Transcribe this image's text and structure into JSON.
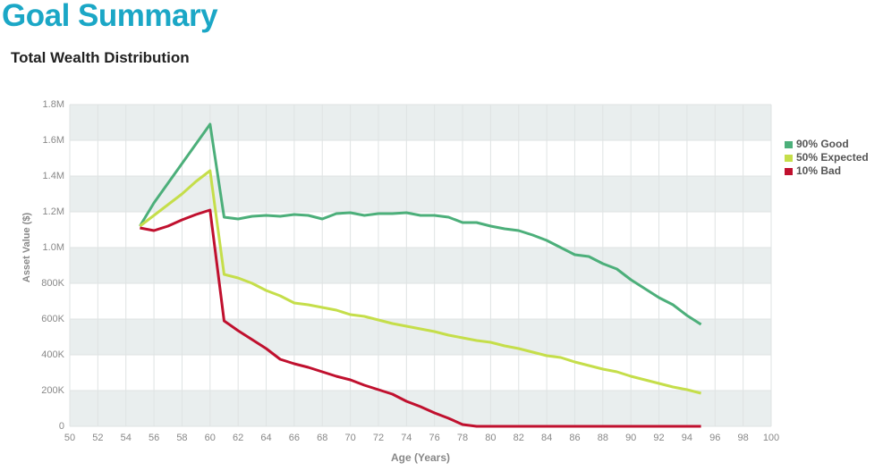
{
  "chart_data": {
    "type": "line",
    "title": "Goal Summary",
    "subtitle": "Total Wealth Distribution",
    "x_label": "Age (Years)",
    "y_label": "Asset Value ($)",
    "x": [
      55,
      56,
      57,
      58,
      59,
      60,
      61,
      62,
      63,
      64,
      65,
      66,
      67,
      68,
      69,
      70,
      71,
      72,
      73,
      74,
      75,
      76,
      77,
      78,
      79,
      80,
      81,
      82,
      83,
      84,
      85,
      86,
      87,
      88,
      89,
      90,
      91,
      92,
      93,
      94,
      95
    ],
    "series": [
      {
        "name": "90% Good",
        "color": "#4caf7a",
        "values": [
          1120000,
          1250000,
          1360000,
          1470000,
          1580000,
          1690000,
          1170000,
          1160000,
          1175000,
          1180000,
          1175000,
          1185000,
          1180000,
          1160000,
          1190000,
          1195000,
          1180000,
          1190000,
          1190000,
          1195000,
          1180000,
          1180000,
          1170000,
          1140000,
          1140000,
          1120000,
          1105000,
          1095000,
          1070000,
          1040000,
          1000000,
          960000,
          950000,
          910000,
          880000,
          820000,
          770000,
          720000,
          680000,
          620000,
          570000
        ]
      },
      {
        "name": "50% Expected",
        "color": "#c5de4a",
        "values": [
          1120000,
          1180000,
          1240000,
          1300000,
          1370000,
          1430000,
          850000,
          830000,
          800000,
          760000,
          730000,
          690000,
          680000,
          665000,
          650000,
          625000,
          615000,
          595000,
          575000,
          560000,
          545000,
          530000,
          510000,
          495000,
          480000,
          470000,
          450000,
          435000,
          415000,
          395000,
          385000,
          360000,
          340000,
          320000,
          305000,
          280000,
          260000,
          240000,
          220000,
          205000,
          185000
        ]
      },
      {
        "name": "10% Bad",
        "color": "#c0102e",
        "values": [
          1110000,
          1095000,
          1120000,
          1155000,
          1185000,
          1210000,
          590000,
          535000,
          485000,
          435000,
          375000,
          350000,
          330000,
          305000,
          280000,
          260000,
          230000,
          205000,
          180000,
          140000,
          110000,
          75000,
          45000,
          10000,
          0,
          0,
          0,
          0,
          0,
          0,
          0,
          0,
          0,
          0,
          0,
          0,
          0,
          0,
          0,
          0,
          0
        ]
      }
    ],
    "xlim": [
      50,
      100
    ],
    "xticks": [
      50,
      52,
      54,
      56,
      58,
      60,
      62,
      64,
      66,
      68,
      70,
      72,
      74,
      76,
      78,
      80,
      82,
      84,
      86,
      88,
      90,
      92,
      94,
      96,
      98,
      100
    ],
    "ylim": [
      0,
      1800000
    ],
    "yticks": [
      0,
      {
        "value": 200000,
        "label": "200K"
      },
      {
        "value": 400000,
        "label": "400K"
      },
      {
        "value": 600000,
        "label": "600K"
      },
      {
        "value": 800000,
        "label": "800K"
      },
      {
        "value": 1000000,
        "label": "1.0M"
      },
      {
        "value": 1200000,
        "label": "1.2M"
      },
      {
        "value": 1400000,
        "label": "1.4M"
      },
      {
        "value": 1600000,
        "label": "1.6M"
      },
      {
        "value": 1800000,
        "label": "1.8M"
      }
    ],
    "grid": true,
    "banded": true,
    "legend": "right"
  }
}
